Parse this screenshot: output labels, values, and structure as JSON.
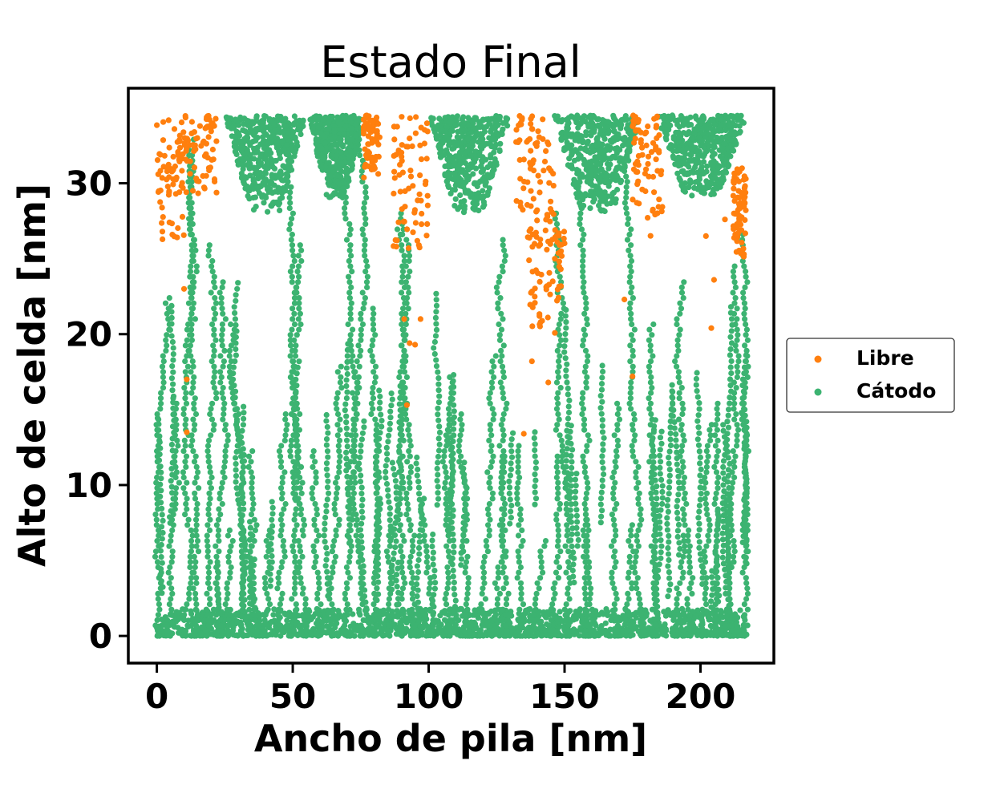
{
  "chart_data": {
    "type": "scatter",
    "title": "Estado Final",
    "xlabel": "Ancho de pila [nm]",
    "ylabel": "Alto de celda [nm]",
    "xlim": [
      -10.5,
      227
    ],
    "ylim": [
      -1.8,
      36.3
    ],
    "xticks": [
      0,
      50,
      100,
      150,
      200
    ],
    "yticks": [
      0,
      10,
      20,
      30
    ],
    "grid": false,
    "legend_position": "center-right-outside",
    "legend": [
      "Libre",
      "Cátodo"
    ],
    "colors": {
      "Libre": "#ff7f0e",
      "Cátodo": "#3cb371"
    },
    "series": [
      {
        "name": "Libre",
        "color": "#ff7f0e",
        "clusters": [
          {
            "x": [
              0,
              10
            ],
            "y": [
              26,
              34.5
            ]
          },
          {
            "x": [
              10,
              22
            ],
            "y": [
              29,
              34.5
            ]
          },
          {
            "x": [
              76,
              82
            ],
            "y": [
              30,
              34.5
            ]
          },
          {
            "x": [
              87,
              100
            ],
            "y": [
              24,
              34.5
            ]
          },
          {
            "x": [
              132,
              146
            ],
            "y": [
              27,
              34.5
            ]
          },
          {
            "x": [
              136,
              150
            ],
            "y": [
              20,
              27
            ]
          },
          {
            "x": [
              175,
              186
            ],
            "y": [
              26,
              34.5
            ]
          },
          {
            "x": [
              212,
              217
            ],
            "y": [
              25,
              31
            ]
          }
        ],
        "points": [
          {
            "x": 10,
            "y": 23
          },
          {
            "x": 11,
            "y": 17
          },
          {
            "x": 11,
            "y": 13.5
          },
          {
            "x": 92,
            "y": 15.3
          },
          {
            "x": 93,
            "y": 19.4
          },
          {
            "x": 95,
            "y": 19.3
          },
          {
            "x": 97,
            "y": 21
          },
          {
            "x": 91,
            "y": 21
          },
          {
            "x": 135,
            "y": 13.4
          },
          {
            "x": 138,
            "y": 18.2
          },
          {
            "x": 144,
            "y": 16.8
          },
          {
            "x": 175,
            "y": 17.2
          },
          {
            "x": 172,
            "y": 22.3
          },
          {
            "x": 205,
            "y": 23.6
          },
          {
            "x": 204,
            "y": 20.4
          },
          {
            "x": 202,
            "y": 26.5
          },
          {
            "x": 209,
            "y": 27.6
          },
          {
            "x": 216,
            "y": 25.3
          }
        ]
      },
      {
        "name": "Cátodo",
        "color": "#3cb371",
        "bands": [
          {
            "y": [
              0,
              1.8
            ],
            "x": [
              0,
              217
            ]
          }
        ],
        "clusters": [
          {
            "x": [
              25,
              55
            ],
            "y": [
              28,
              34.5
            ]
          },
          {
            "x": [
              56,
              76
            ],
            "y": [
              29,
              34.5
            ]
          },
          {
            "x": [
              100,
              130
            ],
            "y": [
              28,
              34.5
            ]
          },
          {
            "x": [
              146,
              178
            ],
            "y": [
              28,
              34.5
            ]
          },
          {
            "x": [
              184,
              217
            ],
            "y": [
              29,
              34.5
            ]
          }
        ],
        "columns_x": [
          0,
          5,
          10,
          14,
          18,
          22,
          27,
          31,
          36,
          40,
          45,
          50,
          55,
          60,
          65,
          70,
          75,
          80,
          85,
          90,
          96,
          102,
          108,
          113,
          119,
          124,
          129,
          134,
          139,
          145,
          151,
          157,
          162,
          168,
          173,
          178,
          184,
          190,
          196,
          201,
          206,
          211,
          216
        ],
        "x_range": [
          0,
          217
        ],
        "y_range": [
          0,
          34.5
        ]
      }
    ]
  }
}
